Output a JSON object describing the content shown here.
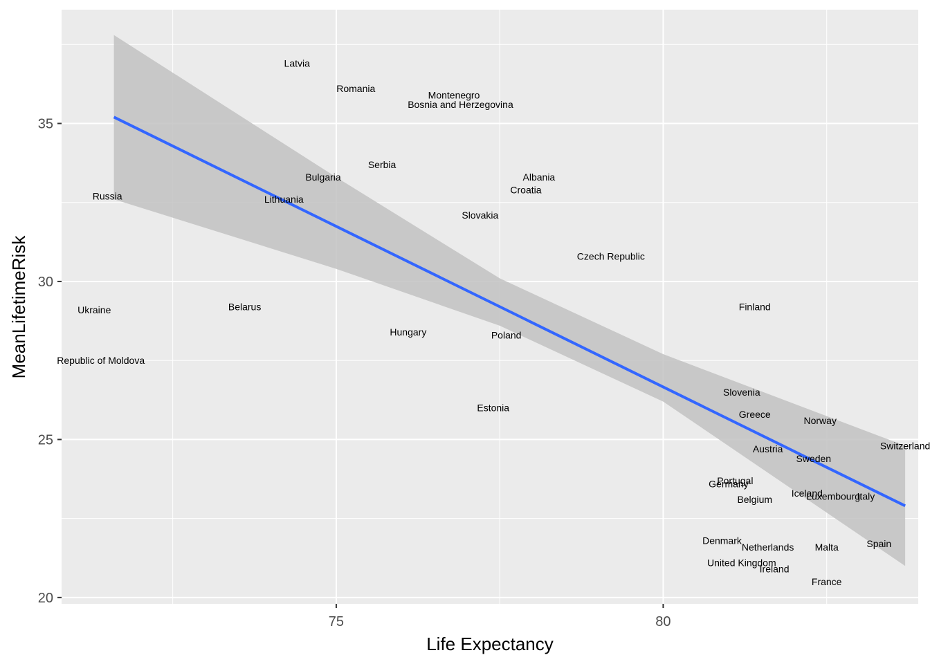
{
  "chart_data": {
    "type": "scatter",
    "title": "",
    "xlabel": "Life Expectancy",
    "ylabel": "MeanLifetimeRisk",
    "xlim": [
      70.8,
      83.9
    ],
    "ylim": [
      19.8,
      38.6
    ],
    "x_major_ticks": [
      75,
      80
    ],
    "x_minor_ticks": [
      72.5,
      77.5,
      82.5
    ],
    "y_major_ticks": [
      20,
      25,
      30,
      35
    ],
    "y_minor_ticks": [
      22.5,
      27.5,
      32.5,
      37.5
    ],
    "x_tick_labels": [
      "75",
      "80"
    ],
    "y_tick_labels": [
      "20",
      "25",
      "30",
      "35"
    ],
    "grid": true,
    "legend": "none",
    "colors": {
      "panel": "#ebebeb",
      "grid": "#ffffff",
      "line": "#3366ff",
      "band": "#c2c2c2"
    },
    "points": [
      {
        "label": "Latvia",
        "x": 74.4,
        "y": 36.9
      },
      {
        "label": "Romania",
        "x": 75.3,
        "y": 36.1
      },
      {
        "label": "Montenegro",
        "x": 76.8,
        "y": 35.9
      },
      {
        "label": "Bosnia and Herzegovina",
        "x": 76.9,
        "y": 35.6
      },
      {
        "label": "Serbia",
        "x": 75.7,
        "y": 33.7
      },
      {
        "label": "Bulgaria",
        "x": 74.8,
        "y": 33.3
      },
      {
        "label": "Albania",
        "x": 78.1,
        "y": 33.3
      },
      {
        "label": "Croatia",
        "x": 77.9,
        "y": 32.9
      },
      {
        "label": "Russia",
        "x": 71.5,
        "y": 32.7
      },
      {
        "label": "Lithuania",
        "x": 74.2,
        "y": 32.6
      },
      {
        "label": "Slovakia",
        "x": 77.2,
        "y": 32.1
      },
      {
        "label": "Czech Republic",
        "x": 79.2,
        "y": 30.8
      },
      {
        "label": "Finland",
        "x": 81.4,
        "y": 29.2
      },
      {
        "label": "Ukraine",
        "x": 71.3,
        "y": 29.1
      },
      {
        "label": "Belarus",
        "x": 73.6,
        "y": 29.2
      },
      {
        "label": "Hungary",
        "x": 76.1,
        "y": 28.4
      },
      {
        "label": "Poland",
        "x": 77.6,
        "y": 28.3
      },
      {
        "label": "Republic of Moldova",
        "x": 71.4,
        "y": 27.5
      },
      {
        "label": "Slovenia",
        "x": 81.2,
        "y": 26.5
      },
      {
        "label": "Estonia",
        "x": 77.4,
        "y": 26.0
      },
      {
        "label": "Greece",
        "x": 81.4,
        "y": 25.8
      },
      {
        "label": "Norway",
        "x": 82.4,
        "y": 25.6
      },
      {
        "label": "Switzerland",
        "x": 83.7,
        "y": 24.8
      },
      {
        "label": "Austria",
        "x": 81.6,
        "y": 24.7
      },
      {
        "label": "Sweden",
        "x": 82.3,
        "y": 24.4
      },
      {
        "label": "Portugal",
        "x": 81.1,
        "y": 23.7
      },
      {
        "label": "Germany",
        "x": 81.0,
        "y": 23.6
      },
      {
        "label": "Iceland",
        "x": 82.2,
        "y": 23.3
      },
      {
        "label": "Luxembourg",
        "x": 82.6,
        "y": 23.2
      },
      {
        "label": "Italy",
        "x": 83.1,
        "y": 23.2
      },
      {
        "label": "Belgium",
        "x": 81.4,
        "y": 23.1
      },
      {
        "label": "Denmark",
        "x": 80.9,
        "y": 21.8
      },
      {
        "label": "Netherlands",
        "x": 81.6,
        "y": 21.6
      },
      {
        "label": "Malta",
        "x": 82.5,
        "y": 21.6
      },
      {
        "label": "Spain",
        "x": 83.3,
        "y": 21.7
      },
      {
        "label": "United Kingdom",
        "x": 81.2,
        "y": 21.1
      },
      {
        "label": "Ireland",
        "x": 81.7,
        "y": 20.9
      },
      {
        "label": "France",
        "x": 82.5,
        "y": 20.5
      }
    ],
    "regression": {
      "method": "lm",
      "x": [
        71.6,
        83.7
      ],
      "y": [
        35.2,
        22.9
      ]
    },
    "confidence_band": {
      "x": [
        71.6,
        75,
        77.5,
        80,
        83.7
      ],
      "lower": [
        32.6,
        30.4,
        28.6,
        26.2,
        21.0
      ],
      "upper": [
        37.8,
        33.3,
        30.1,
        27.7,
        24.8
      ]
    }
  }
}
